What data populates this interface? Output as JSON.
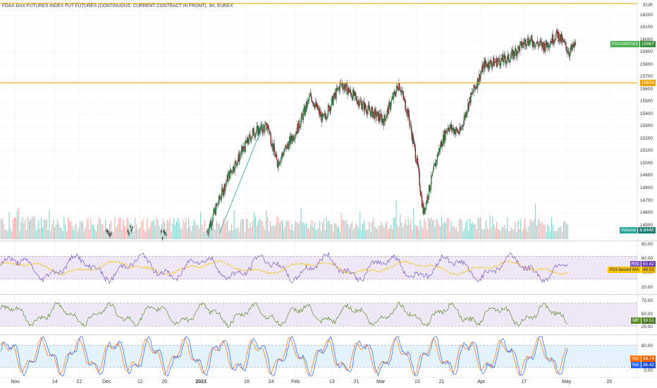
{
  "header": {
    "title": "FDAX-DAX FUTURES-INDEX FUT FUTURES (CONTINUOUS: CURRENT CONTRACT IN FRONT), 3H, EUREX"
  },
  "price_axis": {
    "currency": "EUR",
    "ticks": [
      "16200",
      "16100",
      "16000",
      "15900",
      "15800",
      "15700",
      "15600",
      "15500",
      "15400",
      "15300",
      "15200",
      "15100",
      "15000",
      "14900",
      "14800",
      "14700",
      "14600",
      "14500",
      "14400"
    ]
  },
  "time_axis": {
    "labels": [
      "Nov",
      "14",
      "22",
      "Dec",
      "12",
      "20",
      "2023",
      "16",
      "24",
      "Feb",
      "13",
      "21",
      "Mar",
      "13",
      "21",
      "Apr",
      "17",
      "May",
      "15"
    ]
  },
  "price_tags": {
    "symbol_label": "FDAXM2023",
    "symbol_value": "15967",
    "level_value": "15659",
    "volume_label": "Volume",
    "volume_value": "8.844K"
  },
  "rsi_panel": {
    "axis": [
      "80.00",
      "60.00",
      "40.00",
      "20.00"
    ],
    "rsi_label": "RSI",
    "rsi_value": "50.42",
    "ma_label": "RSI-based MA",
    "ma_value": "49.52"
  },
  "mf_panel": {
    "axis": [
      "75.00",
      "50.00",
      "25.00"
    ],
    "label": "MF",
    "value": "39.51"
  },
  "stoch_panel": {
    "axis": [
      "80.00",
      "50.00",
      "0.00"
    ],
    "d_label": "%D",
    "d_value": "38.74",
    "k_label": "%K",
    "k_value": "36.42"
  },
  "colors": {
    "up": "#26a69a",
    "down": "#ef5350",
    "level_line": "#f5a000",
    "rsi_line": "#7e57c2",
    "rsi_ma": "#f7c400",
    "mf_line": "#5b8c2a",
    "stoch_k": "#2962ff",
    "stoch_d": "#ff6d00",
    "rsi_band": "#ede7f6",
    "stoch_band": "#e3f2fd"
  },
  "chart_data": {
    "type": "candlestick",
    "title": "FDAX-DAX FUTURES-INDEX FUT FUTURES (CONTINUOUS: CURRENT CONTRACT IN FRONT), 3H, EUREX",
    "ylabel": "EUR",
    "ylim": [
      14400,
      16250
    ],
    "horizontal_levels": [
      16230,
      15659
    ],
    "last_price": 15967,
    "price_path_keypoints": [
      {
        "x": "2023-01-03",
        "close": 14450
      },
      {
        "x": "2023-01-10",
        "close": 14900
      },
      {
        "x": "2023-01-18",
        "close": 15250
      },
      {
        "x": "2023-01-23",
        "close": 15300
      },
      {
        "x": "2023-01-26",
        "close": 15000
      },
      {
        "x": "2023-02-02",
        "close": 15300
      },
      {
        "x": "2023-02-06",
        "close": 15550
      },
      {
        "x": "2023-02-10",
        "close": 15350
      },
      {
        "x": "2023-02-16",
        "close": 15650
      },
      {
        "x": "2023-02-24",
        "close": 15450
      },
      {
        "x": "2023-03-02",
        "close": 15350
      },
      {
        "x": "2023-03-07",
        "close": 15650
      },
      {
        "x": "2023-03-10",
        "close": 15400
      },
      {
        "x": "2023-03-13",
        "close": 15000
      },
      {
        "x": "2023-03-15",
        "close": 14600
      },
      {
        "x": "2023-03-20",
        "close": 15100
      },
      {
        "x": "2023-03-23",
        "close": 15300
      },
      {
        "x": "2023-03-27",
        "close": 15250
      },
      {
        "x": "2023-03-30",
        "close": 15500
      },
      {
        "x": "2023-04-04",
        "close": 15800
      },
      {
        "x": "2023-04-12",
        "close": 15850
      },
      {
        "x": "2023-04-18",
        "close": 16000
      },
      {
        "x": "2023-04-24",
        "close": 15950
      },
      {
        "x": "2023-04-28",
        "close": 16050
      },
      {
        "x": "2023-05-02",
        "close": 15900
      },
      {
        "x": "2023-05-04",
        "close": 15967
      }
    ]
  }
}
